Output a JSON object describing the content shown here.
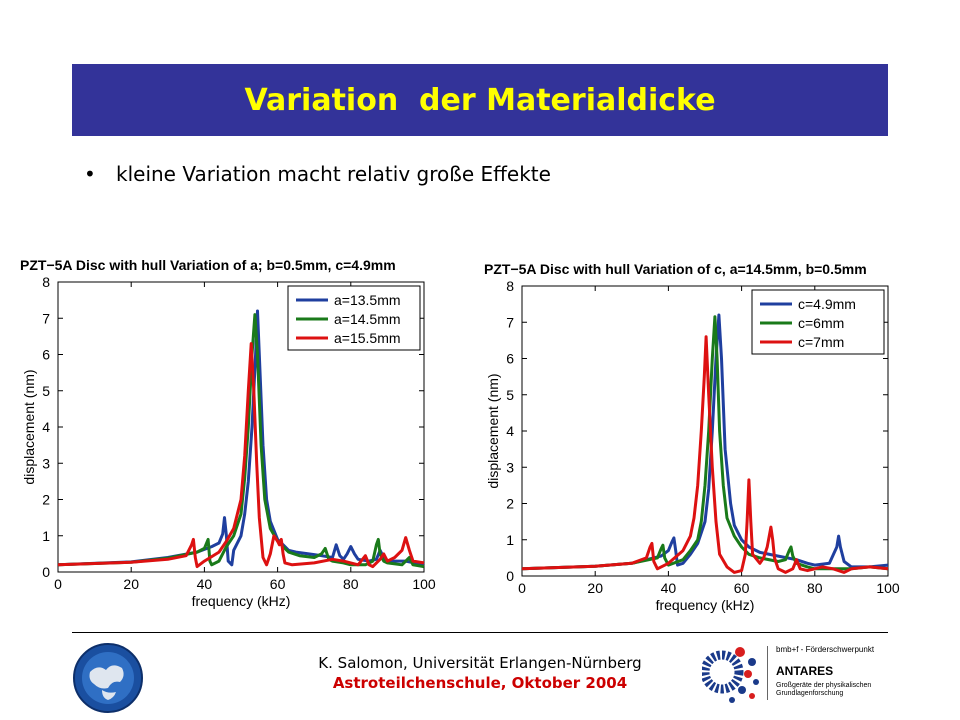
{
  "slide": {
    "title": "Variation  der Materialdicke",
    "bullet": "kleine Variation macht relativ große Effekte",
    "footer_author": "K. Salomon, Universität Erlangen-Nürnberg",
    "footer_event": "Astroteilchenschule, Oktober 2004",
    "logo_right": {
      "bmbf": "bmb+f - Förderschwerpunkt",
      "name": "ANTARES",
      "sub": "Großgeräte der physikalischen Grundlagenforschung"
    },
    "colors": {
      "title_bg": "#333399",
      "title_text": "#ffff00",
      "footer_event": "#cc0000"
    }
  },
  "chart_data": [
    {
      "type": "line",
      "title": "PZT−5A Disc with hull Variation of a; b=0.5mm, c=4.9mm",
      "xlabel": "frequency (kHz)",
      "ylabel": "displacement (nm)",
      "xlim": [
        0,
        100
      ],
      "ylim": [
        0,
        8
      ],
      "xticks": [
        0,
        20,
        40,
        60,
        80,
        100
      ],
      "yticks": [
        0,
        1,
        2,
        3,
        4,
        5,
        6,
        7,
        8
      ],
      "legend_position": "top-right",
      "series": [
        {
          "name": "a=13.5mm",
          "color": "#1f3f9f",
          "points": [
            [
              0,
              0.2
            ],
            [
              20,
              0.28
            ],
            [
              30,
              0.4
            ],
            [
              38,
              0.55
            ],
            [
              42,
              0.7
            ],
            [
              44,
              0.8
            ],
            [
              45,
              1.05
            ],
            [
              45.5,
              1.5
            ],
            [
              46,
              1.0
            ],
            [
              46.5,
              0.3
            ],
            [
              47.5,
              0.2
            ],
            [
              48,
              0.6
            ],
            [
              50,
              1.0
            ],
            [
              51,
              1.6
            ],
            [
              52,
              2.5
            ],
            [
              53,
              4.0
            ],
            [
              54,
              6.0
            ],
            [
              54.5,
              7.2
            ],
            [
              55,
              6.0
            ],
            [
              56,
              3.5
            ],
            [
              57,
              2.0
            ],
            [
              58,
              1.4
            ],
            [
              60,
              0.9
            ],
            [
              62,
              0.7
            ],
            [
              63,
              0.6
            ],
            [
              65,
              0.55
            ],
            [
              70,
              0.48
            ],
            [
              72,
              0.45
            ],
            [
              75,
              0.4
            ],
            [
              76,
              0.75
            ],
            [
              77,
              0.45
            ],
            [
              78,
              0.35
            ],
            [
              79,
              0.5
            ],
            [
              80,
              0.7
            ],
            [
              81,
              0.5
            ],
            [
              82,
              0.35
            ],
            [
              85,
              0.3
            ],
            [
              87,
              0.35
            ],
            [
              88,
              0.6
            ],
            [
              89,
              0.4
            ],
            [
              90,
              0.3
            ],
            [
              95,
              0.3
            ],
            [
              100,
              0.2
            ]
          ]
        },
        {
          "name": "a=14.5mm",
          "color": "#1a7a1a",
          "points": [
            [
              0,
              0.2
            ],
            [
              20,
              0.27
            ],
            [
              30,
              0.38
            ],
            [
              38,
              0.55
            ],
            [
              40,
              0.65
            ],
            [
              41,
              0.9
            ],
            [
              41.5,
              0.3
            ],
            [
              42,
              0.2
            ],
            [
              44,
              0.3
            ],
            [
              46,
              0.7
            ],
            [
              48,
              1.0
            ],
            [
              50,
              1.6
            ],
            [
              51,
              2.6
            ],
            [
              52,
              4.0
            ],
            [
              53,
              6.0
            ],
            [
              53.8,
              7.1
            ],
            [
              54.5,
              6.0
            ],
            [
              55.5,
              3.5
            ],
            [
              56.5,
              2.0
            ],
            [
              58,
              1.2
            ],
            [
              60,
              0.85
            ],
            [
              62,
              0.65
            ],
            [
              63,
              0.55
            ],
            [
              66,
              0.45
            ],
            [
              70,
              0.4
            ],
            [
              72,
              0.5
            ],
            [
              73,
              0.65
            ],
            [
              74,
              0.35
            ],
            [
              75,
              0.3
            ],
            [
              78,
              0.25
            ],
            [
              80,
              0.2
            ],
            [
              84,
              0.2
            ],
            [
              86,
              0.3
            ],
            [
              87,
              0.75
            ],
            [
              87.5,
              0.9
            ],
            [
              88,
              0.5
            ],
            [
              89,
              0.3
            ],
            [
              90,
              0.25
            ],
            [
              94,
              0.2
            ],
            [
              96,
              0.4
            ],
            [
              97,
              0.2
            ],
            [
              100,
              0.15
            ]
          ]
        },
        {
          "name": "a=15.5mm",
          "color": "#dd1111",
          "points": [
            [
              0,
              0.2
            ],
            [
              20,
              0.27
            ],
            [
              30,
              0.35
            ],
            [
              35,
              0.45
            ],
            [
              36.5,
              0.75
            ],
            [
              37,
              0.9
            ],
            [
              37.5,
              0.4
            ],
            [
              38,
              0.15
            ],
            [
              40,
              0.3
            ],
            [
              44,
              0.55
            ],
            [
              46,
              0.85
            ],
            [
              48,
              1.2
            ],
            [
              50,
              2.0
            ],
            [
              51,
              3.2
            ],
            [
              52,
              5.0
            ],
            [
              52.8,
              6.3
            ],
            [
              53.5,
              5.0
            ],
            [
              54.3,
              3.0
            ],
            [
              55,
              1.5
            ],
            [
              56,
              0.4
            ],
            [
              57,
              0.2
            ],
            [
              58,
              0.5
            ],
            [
              59,
              1.0
            ],
            [
              60,
              0.85
            ],
            [
              60.5,
              0.75
            ],
            [
              61,
              0.9
            ],
            [
              61.5,
              0.5
            ],
            [
              62,
              0.25
            ],
            [
              64,
              0.2
            ],
            [
              70,
              0.25
            ],
            [
              75,
              0.35
            ],
            [
              78,
              0.3
            ],
            [
              80,
              0.25
            ],
            [
              82,
              0.2
            ],
            [
              84,
              0.45
            ],
            [
              85,
              0.2
            ],
            [
              86,
              0.15
            ],
            [
              88,
              0.35
            ],
            [
              89,
              0.5
            ],
            [
              90,
              0.3
            ],
            [
              92,
              0.4
            ],
            [
              94,
              0.6
            ],
            [
              95,
              0.95
            ],
            [
              96,
              0.6
            ],
            [
              97,
              0.3
            ],
            [
              100,
              0.25
            ]
          ]
        }
      ]
    },
    {
      "type": "line",
      "title": "PZT−5A Disc with hull Variation of c, a=14.5mm, b=0.5mm",
      "xlabel": "frequency (kHz)",
      "ylabel": "displacement (nm)",
      "xlim": [
        0,
        100
      ],
      "ylim": [
        0,
        8
      ],
      "xticks": [
        0,
        20,
        40,
        60,
        80,
        100
      ],
      "yticks": [
        0,
        1,
        2,
        3,
        4,
        5,
        6,
        7,
        8
      ],
      "legend_position": "top-right",
      "series": [
        {
          "name": "c=4.9mm",
          "color": "#1f3f9f",
          "points": [
            [
              0,
              0.2
            ],
            [
              20,
              0.27
            ],
            [
              30,
              0.35
            ],
            [
              38,
              0.55
            ],
            [
              40,
              0.7
            ],
            [
              41,
              0.95
            ],
            [
              41.5,
              1.05
            ],
            [
              42,
              0.7
            ],
            [
              42.5,
              0.3
            ],
            [
              44,
              0.35
            ],
            [
              46,
              0.6
            ],
            [
              48,
              0.9
            ],
            [
              50,
              1.5
            ],
            [
              51,
              2.4
            ],
            [
              52,
              4.0
            ],
            [
              53,
              6.0
            ],
            [
              53.8,
              7.2
            ],
            [
              54.5,
              6.0
            ],
            [
              55.5,
              3.5
            ],
            [
              57,
              2.0
            ],
            [
              58,
              1.4
            ],
            [
              60,
              1.0
            ],
            [
              62,
              0.8
            ],
            [
              65,
              0.65
            ],
            [
              70,
              0.55
            ],
            [
              75,
              0.45
            ],
            [
              78,
              0.35
            ],
            [
              80,
              0.3
            ],
            [
              84,
              0.35
            ],
            [
              86,
              0.8
            ],
            [
              86.5,
              1.1
            ],
            [
              87,
              0.8
            ],
            [
              88,
              0.4
            ],
            [
              90,
              0.25
            ],
            [
              95,
              0.25
            ],
            [
              100,
              0.3
            ]
          ]
        },
        {
          "name": "c=6mm",
          "color": "#1a7a1a",
          "points": [
            [
              0,
              0.2
            ],
            [
              20,
              0.27
            ],
            [
              30,
              0.35
            ],
            [
              37,
              0.5
            ],
            [
              38,
              0.75
            ],
            [
              38.5,
              0.85
            ],
            [
              39,
              0.5
            ],
            [
              40,
              0.3
            ],
            [
              44,
              0.45
            ],
            [
              46,
              0.7
            ],
            [
              48,
              1.0
            ],
            [
              49,
              1.5
            ],
            [
              50,
              2.5
            ],
            [
              51,
              4.0
            ],
            [
              52,
              6.0
            ],
            [
              52.7,
              7.15
            ],
            [
              53.3,
              6.0
            ],
            [
              54,
              4.0
            ],
            [
              55,
              2.5
            ],
            [
              56,
              1.6
            ],
            [
              58,
              1.1
            ],
            [
              60,
              0.8
            ],
            [
              62,
              0.6
            ],
            [
              65,
              0.5
            ],
            [
              70,
              0.4
            ],
            [
              72,
              0.45
            ],
            [
              73,
              0.7
            ],
            [
              73.5,
              0.8
            ],
            [
              74,
              0.55
            ],
            [
              75,
              0.35
            ],
            [
              78,
              0.25
            ],
            [
              80,
              0.2
            ],
            [
              85,
              0.2
            ],
            [
              90,
              0.2
            ],
            [
              95,
              0.25
            ],
            [
              100,
              0.2
            ]
          ]
        },
        {
          "name": "c=7mm",
          "color": "#dd1111",
          "points": [
            [
              0,
              0.2
            ],
            [
              20,
              0.27
            ],
            [
              30,
              0.35
            ],
            [
              34,
              0.5
            ],
            [
              35,
              0.8
            ],
            [
              35.5,
              0.9
            ],
            [
              36,
              0.4
            ],
            [
              37,
              0.2
            ],
            [
              40,
              0.35
            ],
            [
              44,
              0.7
            ],
            [
              46,
              1.1
            ],
            [
              47,
              1.6
            ],
            [
              48,
              2.5
            ],
            [
              49,
              4.0
            ],
            [
              49.8,
              5.5
            ],
            [
              50.3,
              6.6
            ],
            [
              51,
              5.0
            ],
            [
              52,
              3.0
            ],
            [
              53,
              1.5
            ],
            [
              54,
              0.6
            ],
            [
              56,
              0.25
            ],
            [
              58,
              0.1
            ],
            [
              60,
              0.15
            ],
            [
              61,
              0.6
            ],
            [
              61.5,
              1.5
            ],
            [
              62,
              2.65
            ],
            [
              62.5,
              1.5
            ],
            [
              63,
              0.6
            ],
            [
              65,
              0.35
            ],
            [
              66,
              0.5
            ],
            [
              67,
              0.8
            ],
            [
              68,
              1.35
            ],
            [
              68.5,
              1.0
            ],
            [
              69,
              0.5
            ],
            [
              70,
              0.2
            ],
            [
              72,
              0.1
            ],
            [
              74,
              0.2
            ],
            [
              75,
              0.45
            ],
            [
              76,
              0.2
            ],
            [
              78,
              0.15
            ],
            [
              80,
              0.2
            ],
            [
              82,
              0.25
            ],
            [
              85,
              0.2
            ],
            [
              88,
              0.1
            ],
            [
              90,
              0.2
            ],
            [
              95,
              0.25
            ],
            [
              100,
              0.2
            ]
          ]
        }
      ]
    }
  ]
}
